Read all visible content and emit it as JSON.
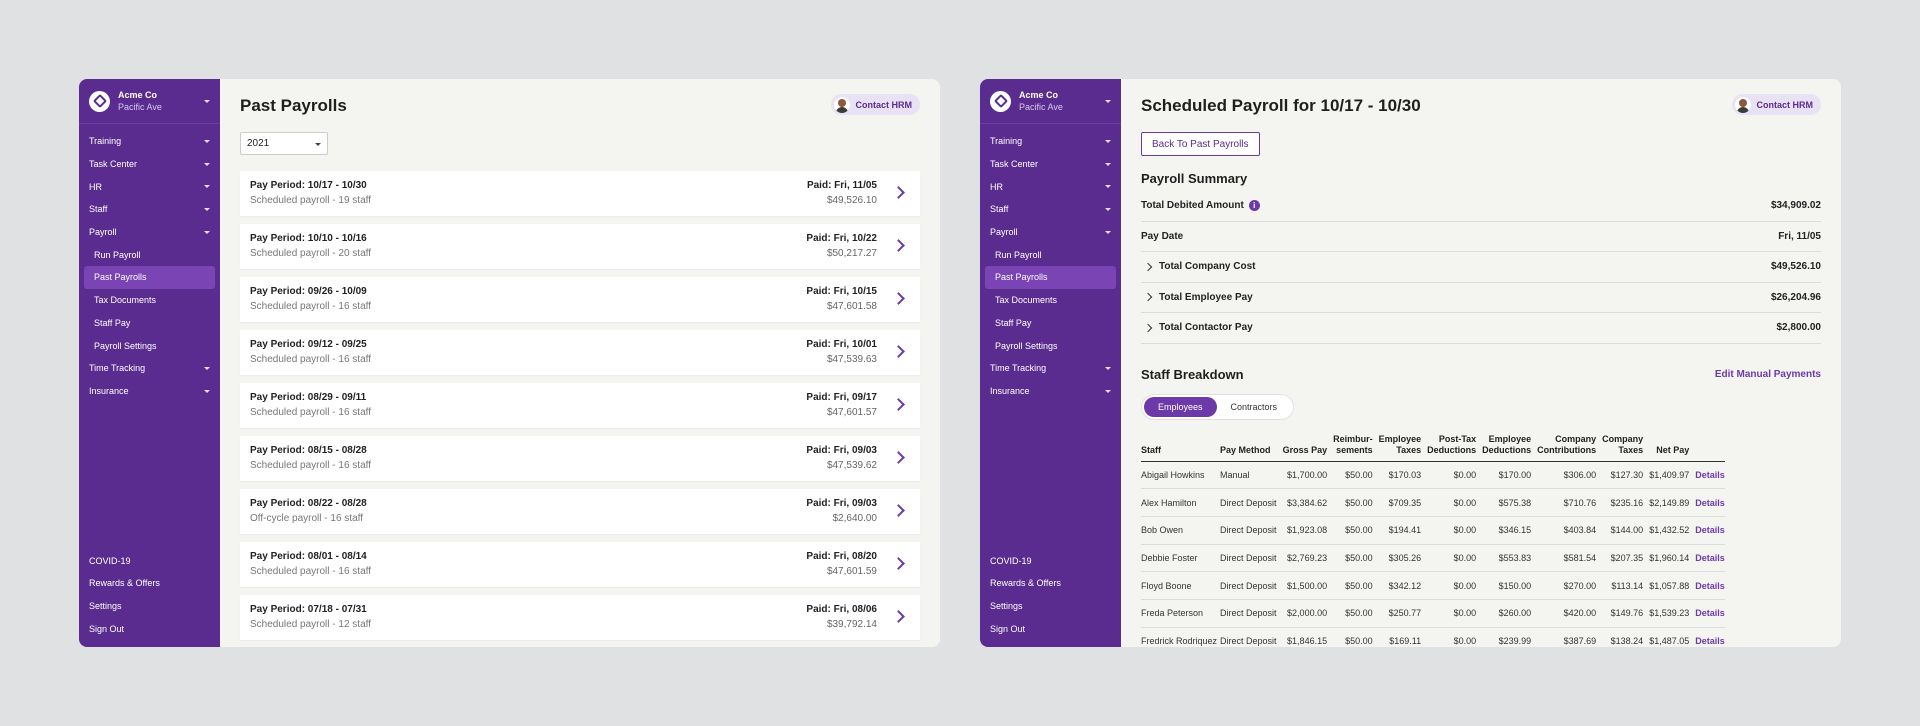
{
  "sidebar": {
    "company": "Acme Co",
    "location": "Pacific Ave",
    "nav": [
      {
        "label": "Training",
        "caret": true,
        "sub": false
      },
      {
        "label": "Task Center",
        "caret": true,
        "sub": false
      },
      {
        "label": "HR",
        "caret": true,
        "sub": false
      },
      {
        "label": "Staff",
        "caret": true,
        "sub": false
      },
      {
        "label": "Payroll",
        "caret": true,
        "sub": false
      },
      {
        "label": "Run Payroll",
        "caret": false,
        "sub": true
      },
      {
        "label": "Past Payrolls",
        "caret": false,
        "sub": true,
        "active": true
      },
      {
        "label": "Tax Documents",
        "caret": false,
        "sub": true
      },
      {
        "label": "Staff Pay",
        "caret": false,
        "sub": true
      },
      {
        "label": "Payroll Settings",
        "caret": false,
        "sub": true
      },
      {
        "label": "Time Tracking",
        "caret": true,
        "sub": false
      },
      {
        "label": "Insurance",
        "caret": true,
        "sub": false
      }
    ],
    "bottom": [
      "COVID-19",
      "Rewards & Offers",
      "Settings",
      "Sign Out"
    ]
  },
  "contact_hrm": "Contact HRM",
  "past_payrolls": {
    "title": "Past Payrolls",
    "year": "2021",
    "rows": [
      {
        "period": "Pay Period: 10/17 - 10/30",
        "desc": "Scheduled payroll - 19 staff",
        "paid": "Paid: Fri, 11/05",
        "amount": "$49,526.10"
      },
      {
        "period": "Pay Period: 10/10 - 10/16",
        "desc": "Scheduled payroll - 20 staff",
        "paid": "Paid: Fri, 10/22",
        "amount": "$50,217.27"
      },
      {
        "period": "Pay Period: 09/26 - 10/09",
        "desc": "Scheduled payroll - 16 staff",
        "paid": "Paid: Fri, 10/15",
        "amount": "$47,601.58"
      },
      {
        "period": "Pay Period: 09/12 - 09/25",
        "desc": "Scheduled payroll - 16 staff",
        "paid": "Paid: Fri, 10/01",
        "amount": "$47,539.63"
      },
      {
        "period": "Pay Period: 08/29 - 09/11",
        "desc": "Scheduled payroll - 16 staff",
        "paid": "Paid: Fri, 09/17",
        "amount": "$47,601.57"
      },
      {
        "period": "Pay Period: 08/15 - 08/28",
        "desc": "Scheduled payroll - 16 staff",
        "paid": "Paid: Fri, 09/03",
        "amount": "$47,539.62"
      },
      {
        "period": "Pay Period: 08/22 - 08/28",
        "desc": "Off-cycle payroll - 16 staff",
        "paid": "Paid: Fri, 09/03",
        "amount": "$2,640.00"
      },
      {
        "period": "Pay Period: 08/01 - 08/14",
        "desc": "Scheduled payroll - 16 staff",
        "paid": "Paid: Fri, 08/20",
        "amount": "$47,601.59"
      },
      {
        "period": "Pay Period: 07/18 - 07/31",
        "desc": "Scheduled payroll - 12 staff",
        "paid": "Paid: Fri, 08/06",
        "amount": "$39,792.14"
      }
    ]
  },
  "scheduled": {
    "title": "Scheduled Payroll for 10/17 - 10/30",
    "back_label": "Back To Past Payrolls",
    "summary_title": "Payroll Summary",
    "summary": [
      {
        "label": "Total Debited Amount",
        "value": "$34,909.02",
        "info": true,
        "expand": false
      },
      {
        "label": "Pay Date",
        "value": "Fri, 11/05",
        "info": false,
        "expand": false
      },
      {
        "label": "Total Company Cost",
        "value": "$49,526.10",
        "info": false,
        "expand": true
      },
      {
        "label": "Total Employee Pay",
        "value": "$26,204.96",
        "info": false,
        "expand": true
      },
      {
        "label": "Total Contactor Pay",
        "value": "$2,800.00",
        "info": false,
        "expand": true
      }
    ],
    "breakdown_title": "Staff Breakdown",
    "edit_link": "Edit Manual Payments",
    "tabs": [
      "Employees",
      "Contractors"
    ],
    "columns": [
      "Staff",
      "Pay Method",
      "Gross Pay",
      "Reimbur-\nsements",
      "Employee\nTaxes",
      "Post-Tax\nDeductions",
      "Employee\nDeductions",
      "Company\nContributions",
      "Company\nTaxes",
      "Net Pay",
      ""
    ],
    "details_label": "Details",
    "staff": [
      [
        "Abigail Howkins",
        "Manual",
        "$1,700.00",
        "$50.00",
        "$170.03",
        "$0.00",
        "$170.00",
        "$306.00",
        "$127.30",
        "$1,409.97"
      ],
      [
        "Alex Hamilton",
        "Direct Deposit",
        "$3,384.62",
        "$50.00",
        "$709.35",
        "$0.00",
        "$575.38",
        "$710.76",
        "$235.16",
        "$2,149.89"
      ],
      [
        "Bob Owen",
        "Direct Deposit",
        "$1,923.08",
        "$50.00",
        "$194.41",
        "$0.00",
        "$346.15",
        "$403.84",
        "$144.00",
        "$1,432.52"
      ],
      [
        "Debbie Foster",
        "Direct Deposit",
        "$2,769.23",
        "$50.00",
        "$305.26",
        "$0.00",
        "$553.83",
        "$581.54",
        "$207.35",
        "$1,960.14"
      ],
      [
        "Floyd Boone",
        "Direct Deposit",
        "$1,500.00",
        "$50.00",
        "$342.12",
        "$0.00",
        "$150.00",
        "$270.00",
        "$113.14",
        "$1,057.88"
      ],
      [
        "Freda Peterson",
        "Direct Deposit",
        "$2,000.00",
        "$50.00",
        "$250.77",
        "$0.00",
        "$260.00",
        "$420.00",
        "$149.76",
        "$1,539.23"
      ],
      [
        "Fredrick Rodriquez",
        "Direct Deposit",
        "$1,846.15",
        "$50.00",
        "$169.11",
        "$0.00",
        "$239.99",
        "$387.69",
        "$138.24",
        "$1,487.05"
      ]
    ]
  }
}
